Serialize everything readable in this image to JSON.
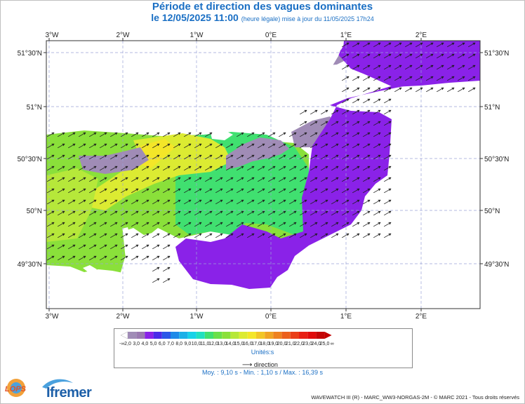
{
  "title": "Période et direction des vagues dominantes",
  "subtitle": {
    "date": "le 12/05/2025 11:00",
    "detail": "(heure légale) mise à jour du 11/05/2025 17h24"
  },
  "axes": {
    "lon_labels": [
      "3°W",
      "2°W",
      "1°W",
      "0°E",
      "1°E",
      "2°E"
    ],
    "lat_labels": [
      "51°30'N",
      "51°N",
      "50°30'N",
      "50°N",
      "49°30'N"
    ]
  },
  "legend": {
    "values": [
      "2,0",
      "3,0",
      "4,0",
      "5,0",
      "6,0",
      "7,0",
      "8,0",
      "9,0",
      "10,0",
      "11,0",
      "12,0",
      "13,0",
      "14,0",
      "15,0",
      "16,0",
      "17,0",
      "18,0",
      "19,0",
      "20,0",
      "21,0",
      "22,0",
      "23,0",
      "24,0",
      "25,0"
    ],
    "low_end": "-∞",
    "high_end": "∞",
    "colors": [
      "#ffffff",
      "#a08cb6",
      "#9a7ab0",
      "#8a22e8",
      "#4a2ae8",
      "#2a56e8",
      "#1e8ae8",
      "#1ab0e8",
      "#16d2e8",
      "#20e0c0",
      "#40e070",
      "#6ae04a",
      "#8ae03a",
      "#b6e83a",
      "#dceb32",
      "#f4e628",
      "#f2c626",
      "#f0a424",
      "#ee8220",
      "#ec601c",
      "#ea3e18",
      "#e82014",
      "#e00c0c",
      "#c40606",
      "#c20000"
    ],
    "unit": "Unités:s",
    "direction_label": "direction"
  },
  "stats": "Moy. : 9,10 s  -  Min. : 1,10 s / Max. : 16,39 s",
  "credit": "WAVEWATCH III (R) - MARC_WW3-NORGAS-2M - © MARC 2021 - Tous droits réservés",
  "logos": {
    "lops": "LOPS",
    "ifremer": "Ifremer"
  },
  "colors": {
    "title": "#1a6fc4",
    "land": "#ffffff",
    "purple": "#8a22e8",
    "grey": "#a08cb6",
    "green_light": "#8ae03a",
    "green": "#40e070",
    "yellow": "#dceb32",
    "blue": "#1e8ae8"
  },
  "map": {
    "region": "English Channel",
    "lon_range": [
      -3.1,
      2.75
    ],
    "lat_range": [
      49.1,
      51.6
    ],
    "dominant_direction_deg": 60
  }
}
